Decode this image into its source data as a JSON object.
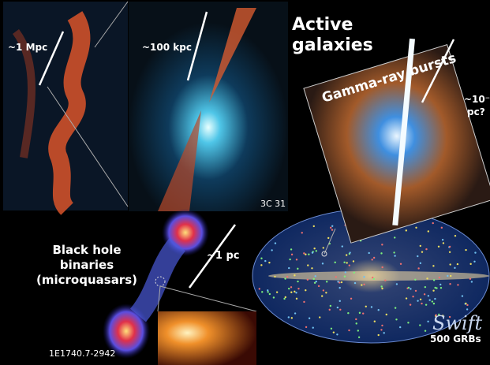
{
  "title": [
    "Active",
    "galaxies"
  ],
  "panels": {
    "radio_galaxy": {
      "scale": "~1 Mpc"
    },
    "jet": {
      "scale": "~100 kpc",
      "caption": "3C 31"
    },
    "grb": {
      "title": "Gamma-ray bursts",
      "scale": [
        "~10⁻",
        "pc?"
      ]
    },
    "microquasar": {
      "title": [
        "Black hole",
        "binaries",
        "(microquasars)"
      ],
      "scale": "~1 pc",
      "caption": "1E1740.7-2942"
    },
    "sky_map": {
      "logo": "Swift",
      "caption": "500 GRBs"
    }
  }
}
